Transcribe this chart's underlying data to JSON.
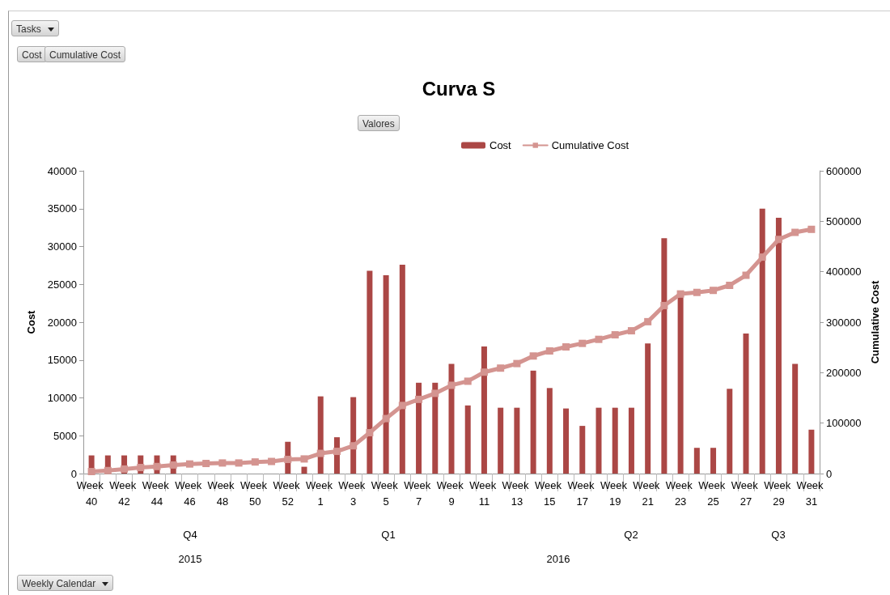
{
  "chart_data": {
    "type": "bar",
    "title": "Curva S",
    "ylabel": "Cost",
    "y2label": "Cumulative Cost",
    "categories": [
      "Week 40",
      null,
      "Week 42",
      null,
      "Week 44",
      null,
      "Week 46",
      null,
      "Week 48",
      null,
      "Week 50",
      null,
      "Week 52",
      null,
      "Week 1",
      null,
      "Week 3",
      null,
      "Week 5",
      null,
      "Week 7",
      null,
      "Week 9",
      null,
      "Week 11",
      null,
      "Week 13",
      null,
      "Week 15",
      null,
      "Week 17",
      null,
      "Week 19",
      null,
      "Week 21",
      null,
      "Week 23",
      null,
      "Week 25",
      null,
      "Week 27",
      null,
      "Week 29",
      null,
      "Week 31"
    ],
    "series": [
      {
        "name": "Cost",
        "color": "#ab4745",
        "values": [
          2400,
          2400,
          2400,
          2400,
          2400,
          2400,
          null,
          null,
          null,
          null,
          null,
          null,
          4200,
          900,
          10200,
          4800,
          10100,
          26800,
          26200,
          27600,
          12000,
          12000,
          14500,
          9000,
          16800,
          8700,
          8700,
          13600,
          11300,
          8600,
          6300,
          8700,
          8700,
          8700,
          17200,
          31100,
          23300,
          3400,
          3400,
          11200,
          18500,
          35000,
          33800,
          14500,
          5800
        ]
      },
      {
        "name": "Cumulative Cost",
        "type": "line",
        "axis": "y2",
        "color": "#d49490",
        "marker": "square",
        "line_style": "solid",
        "values": [
          4000,
          6000,
          9000,
          12000,
          14000,
          17000,
          19000,
          20000,
          21000,
          21000,
          23000,
          24000,
          28000,
          29000,
          40000,
          44000,
          55000,
          81000,
          109000,
          135000,
          147000,
          159000,
          175000,
          183000,
          201000,
          209000,
          218000,
          233000,
          243000,
          251000,
          258000,
          266000,
          275000,
          283000,
          301000,
          333000,
          356000,
          359000,
          363000,
          373000,
          393000,
          429000,
          464000,
          478000,
          484000
        ]
      }
    ],
    "ylim": [
      0,
      40000
    ],
    "yticks": [
      0,
      5000,
      10000,
      15000,
      20000,
      25000,
      30000,
      35000,
      40000
    ],
    "y2lim": [
      0,
      600000
    ],
    "y2ticks": [
      0,
      100000,
      200000,
      300000,
      400000,
      500000,
      600000
    ],
    "grid": false,
    "legend": "top",
    "annotations": [
      "Tasks",
      "Cost",
      "Cumulative Cost",
      "Valores",
      "Weekly Calendar",
      "Q4",
      "Q1",
      "Q2",
      "Q3",
      "2015",
      "2016"
    ]
  }
}
